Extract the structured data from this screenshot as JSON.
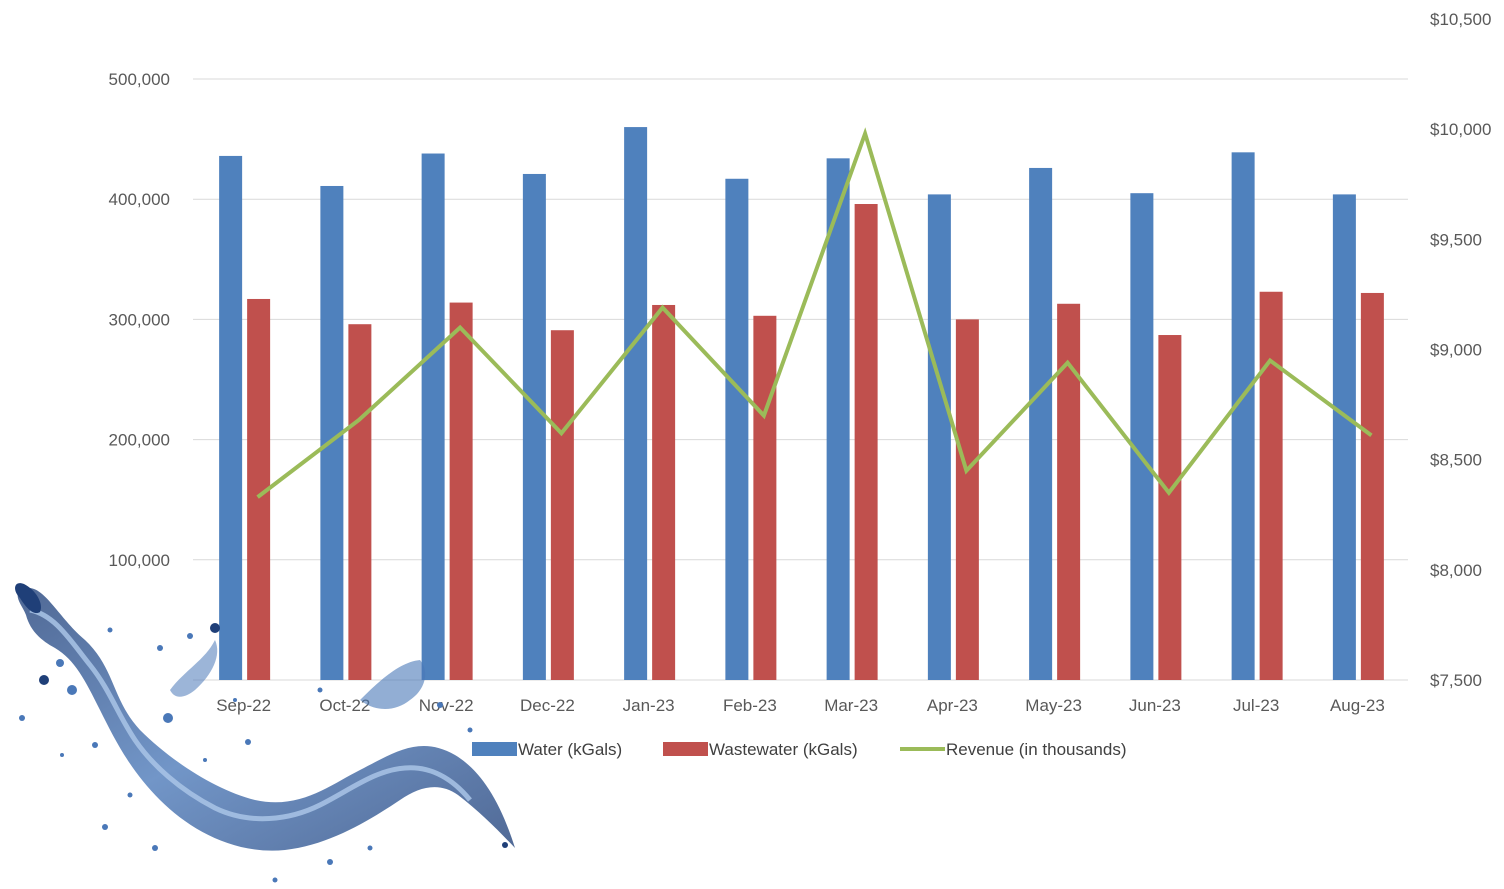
{
  "chart_data": {
    "type": "bar",
    "categories": [
      "Sep-22",
      "Oct-22",
      "Nov-22",
      "Dec-22",
      "Jan-23",
      "Feb-23",
      "Mar-23",
      "Apr-23",
      "May-23",
      "Jun-23",
      "Jul-23",
      "Aug-23"
    ],
    "series": [
      {
        "name": "Water (kGals)",
        "type": "bar",
        "axis": "left",
        "color": "#4F81BD",
        "values": [
          436000,
          411000,
          438000,
          421000,
          460000,
          417000,
          434000,
          404000,
          426000,
          405000,
          439000,
          404000
        ]
      },
      {
        "name": "Wastewater (kGals)",
        "type": "bar",
        "axis": "left",
        "color": "#C0504D",
        "values": [
          317000,
          296000,
          314000,
          291000,
          312000,
          303000,
          396000,
          300000,
          313000,
          287000,
          323000,
          322000
        ]
      },
      {
        "name": "Revenue (in thousands)",
        "type": "line",
        "axis": "right",
        "color": "#9BBB59",
        "values": [
          8330,
          8680,
          9100,
          8620,
          9190,
          8700,
          9980,
          8450,
          8940,
          8350,
          8950,
          8610
        ]
      }
    ],
    "left_axis": {
      "ticks": [
        100000,
        200000,
        300000,
        400000,
        500000
      ],
      "tick_labels": [
        "100,000",
        "200,000",
        "300,000",
        "400,000",
        "500,000"
      ],
      "ylim": [
        0,
        500000
      ]
    },
    "right_axis": {
      "ticks": [
        7500,
        8000,
        8500,
        9000,
        9500,
        10000,
        10500
      ],
      "tick_labels": [
        "$7,500",
        "$8,000",
        "$8,500",
        "$9,000",
        "$9,500",
        "$10,000",
        "$10,500"
      ],
      "ylim": [
        7500,
        10500
      ]
    },
    "grid": true,
    "legend_position": "bottom",
    "title": "",
    "xlabel": "",
    "ylabel": ""
  },
  "decoration": {
    "image": "water-splash",
    "colors": {
      "gridline": "#D9D9D9",
      "axis_text": "#595959",
      "splash_dark": "#1F3F78",
      "splash_mid": "#4A78B8",
      "splash_light": "#A9C4E6"
    }
  }
}
